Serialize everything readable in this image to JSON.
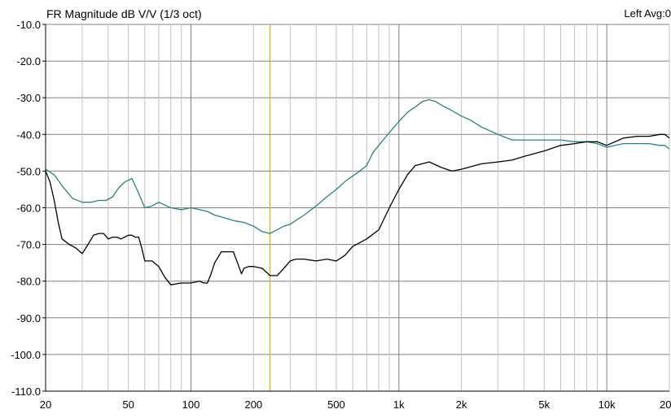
{
  "header": {
    "title": "FR Magnitude dB V/V (1/3 oct)",
    "channel": "Left  Avg:0"
  },
  "chart_data": {
    "type": "line",
    "title": "FR Magnitude dB V/V (1/3 oct)",
    "xscale": "log",
    "xlim": [
      20,
      20000
    ],
    "ylim": [
      -110,
      -10
    ],
    "grid": true,
    "y_ticks": [
      "-10.0",
      "-20.0",
      "-30.0",
      "-40.0",
      "-50.0",
      "-60.0",
      "-70.0",
      "-80.0",
      "-90.0",
      "-100.0",
      "-110.0"
    ],
    "x_ticks": [
      {
        "value": 20,
        "label": "20"
      },
      {
        "value": 50,
        "label": "50"
      },
      {
        "value": 100,
        "label": "100"
      },
      {
        "value": 200,
        "label": "200"
      },
      {
        "value": 500,
        "label": "500"
      },
      {
        "value": 1000,
        "label": "1k"
      },
      {
        "value": 2000,
        "label": "2k"
      },
      {
        "value": 5000,
        "label": "5k"
      },
      {
        "value": 10000,
        "label": "10k"
      },
      {
        "value": 20000,
        "label": "20k"
      }
    ],
    "cursor_x": 240,
    "colors": {
      "grid": "#c0c0c0",
      "major_grid": "#808080",
      "cursor": "#e0b000",
      "series1": "#2a8080",
      "series2": "#000000"
    },
    "series": [
      {
        "color": "#2a8080",
        "x": [
          20,
          22,
          24,
          27,
          30,
          33,
          36,
          39,
          42,
          45,
          48,
          52,
          56,
          60,
          65,
          70,
          80,
          90,
          100,
          110,
          120,
          130,
          140,
          150,
          160,
          180,
          200,
          220,
          240,
          260,
          280,
          300,
          350,
          400,
          450,
          500,
          560,
          630,
          700,
          750,
          800,
          900,
          1000,
          1100,
          1200,
          1300,
          1400,
          1500,
          1600,
          1800,
          2000,
          2200,
          2500,
          3000,
          3500,
          4000,
          5000,
          6000,
          7000,
          8000,
          9000,
          10000,
          11000,
          12000,
          14000,
          16000,
          18000,
          19000,
          20000
        ],
        "values": [
          -49.5,
          -51,
          -54,
          -57.5,
          -58.5,
          -58.5,
          -58,
          -58,
          -57,
          -54.5,
          -53,
          -52,
          -56,
          -60,
          -59.5,
          -58.5,
          -60,
          -60.5,
          -60,
          -60.5,
          -61,
          -62,
          -62.5,
          -63,
          -63.5,
          -64,
          -65,
          -66.5,
          -67,
          -66,
          -65,
          -64.5,
          -62,
          -59.5,
          -57,
          -55,
          -52.5,
          -50.5,
          -48.5,
          -45,
          -43,
          -39.5,
          -36.5,
          -34,
          -32.5,
          -31,
          -30.5,
          -31,
          -32,
          -33.5,
          -35,
          -36,
          -38,
          -40,
          -41.5,
          -41.5,
          -41.5,
          -41.5,
          -42,
          -42,
          -42.5,
          -43.5,
          -43,
          -42.5,
          -42.5,
          -42.5,
          -43,
          -43,
          -44
        ]
      },
      {
        "color": "#000000",
        "x": [
          20,
          21,
          22,
          23,
          24,
          26,
          28,
          30,
          32,
          34,
          36,
          38,
          40,
          42,
          44,
          46,
          48,
          50,
          52,
          54,
          56,
          58,
          60,
          65,
          70,
          75,
          80,
          90,
          100,
          110,
          115,
          120,
          125,
          130,
          140,
          150,
          160,
          170,
          175,
          180,
          190,
          200,
          220,
          240,
          250,
          260,
          280,
          300,
          320,
          350,
          400,
          450,
          500,
          550,
          600,
          650,
          700,
          800,
          900,
          1000,
          1100,
          1200,
          1400,
          1600,
          1800,
          2000,
          2500,
          3000,
          3500,
          4000,
          5000,
          6000,
          7000,
          8000,
          9000,
          10000,
          12000,
          14000,
          16000,
          18000,
          19000,
          20000
        ],
        "values": [
          -50,
          -53,
          -58,
          -64,
          -68.5,
          -70,
          -71,
          -72.5,
          -70,
          -67.5,
          -67,
          -67,
          -68.5,
          -68,
          -68,
          -68.5,
          -68,
          -67.5,
          -67.5,
          -68,
          -68,
          -71,
          -74.5,
          -74.5,
          -76,
          -79,
          -81,
          -80.5,
          -80.5,
          -80,
          -80.5,
          -80.5,
          -78,
          -75,
          -72,
          -72,
          -72,
          -76,
          -78,
          -76.5,
          -76,
          -76,
          -76.5,
          -78.5,
          -78.5,
          -78.5,
          -76.5,
          -74.5,
          -74,
          -74,
          -74.5,
          -74,
          -74.5,
          -73,
          -70.5,
          -69.5,
          -68.5,
          -66,
          -60,
          -55,
          -51,
          -48.5,
          -47.5,
          -49,
          -50,
          -49.5,
          -48,
          -47.5,
          -47,
          -46,
          -44.5,
          -43,
          -42.5,
          -42,
          -42,
          -43,
          -41,
          -40.5,
          -40.5,
          -40,
          -40,
          -41
        ]
      }
    ]
  }
}
